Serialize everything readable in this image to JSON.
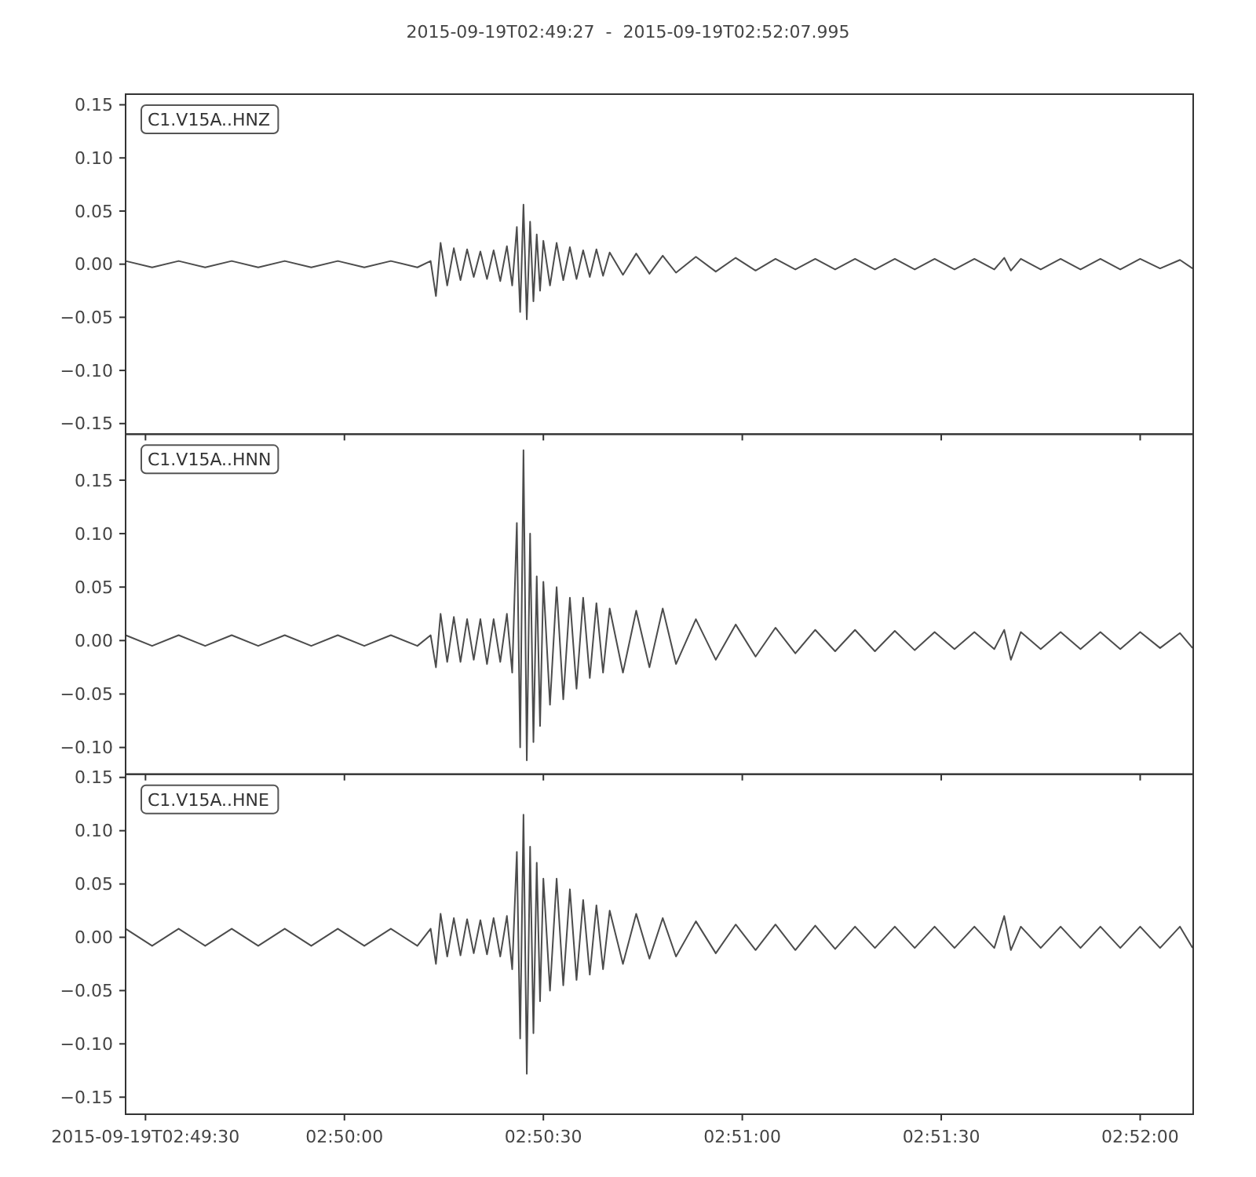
{
  "chart_data": [
    {
      "type": "line",
      "title": "2015-09-19T02:49:27  -  2015-09-19T02:52:07.995",
      "annotations": [
        "C1.V15A..HNZ"
      ],
      "tick_labels": "y",
      "xlim": [
        "2015-09-19T02:49:27",
        "2015-09-19T02:52:07.995"
      ],
      "xticks": [
        {
          "value": "2015-09-19T02:49:30",
          "label": null
        },
        {
          "value": "2015-09-19T02:50:00",
          "label": null
        },
        {
          "value": "2015-09-19T02:50:30",
          "label": null
        },
        {
          "value": "2015-09-19T02:51:00",
          "label": null
        },
        {
          "value": "2015-09-19T02:51:30",
          "label": null
        },
        {
          "value": "2015-09-19T02:52:00",
          "label": null
        }
      ],
      "ylim": [
        -0.16,
        0.16
      ],
      "yticks": [
        {
          "value": 0.15,
          "label": "0.15"
        },
        {
          "value": 0.1,
          "label": "0.10"
        },
        {
          "value": 0.05,
          "label": "0.05"
        },
        {
          "value": 0,
          "label": "0.00"
        },
        {
          "value": -0.05,
          "label": "−0.05"
        },
        {
          "value": -0.1,
          "label": "−0.10"
        },
        {
          "value": -0.15,
          "label": "−0.15"
        }
      ],
      "x": [
        "2015-09-19T02:49:27",
        "2015-09-19T02:49:31",
        "2015-09-19T02:49:35",
        "2015-09-19T02:49:39",
        "2015-09-19T02:49:43",
        "2015-09-19T02:49:47",
        "2015-09-19T02:49:51",
        "2015-09-19T02:49:55",
        "2015-09-19T02:49:59",
        "2015-09-19T02:50:03",
        "2015-09-19T02:50:07",
        "2015-09-19T02:50:11",
        "2015-09-19T02:50:13",
        "2015-09-19T02:50:13.8",
        "2015-09-19T02:50:14.5",
        "2015-09-19T02:50:15.5",
        "2015-09-19T02:50:16.5",
        "2015-09-19T02:50:17.5",
        "2015-09-19T02:50:18.5",
        "2015-09-19T02:50:19.5",
        "2015-09-19T02:50:20.5",
        "2015-09-19T02:50:21.5",
        "2015-09-19T02:50:22.5",
        "2015-09-19T02:50:23.5",
        "2015-09-19T02:50:24.5",
        "2015-09-19T02:50:25.3",
        "2015-09-19T02:50:26",
        "2015-09-19T02:50:26.5",
        "2015-09-19T02:50:27",
        "2015-09-19T02:50:27.5",
        "2015-09-19T02:50:28",
        "2015-09-19T02:50:28.5",
        "2015-09-19T02:50:29",
        "2015-09-19T02:50:29.5",
        "2015-09-19T02:50:30",
        "2015-09-19T02:50:31",
        "2015-09-19T02:50:32",
        "2015-09-19T02:50:33",
        "2015-09-19T02:50:34",
        "2015-09-19T02:50:35",
        "2015-09-19T02:50:36",
        "2015-09-19T02:50:37",
        "2015-09-19T02:50:38",
        "2015-09-19T02:50:39",
        "2015-09-19T02:50:40",
        "2015-09-19T02:50:42",
        "2015-09-19T02:50:44",
        "2015-09-19T02:50:46",
        "2015-09-19T02:50:48",
        "2015-09-19T02:50:50",
        "2015-09-19T02:50:53",
        "2015-09-19T02:50:56",
        "2015-09-19T02:50:59",
        "2015-09-19T02:51:02",
        "2015-09-19T02:51:05",
        "2015-09-19T02:51:08",
        "2015-09-19T02:51:11",
        "2015-09-19T02:51:14",
        "2015-09-19T02:51:17",
        "2015-09-19T02:51:20",
        "2015-09-19T02:51:23",
        "2015-09-19T02:51:26",
        "2015-09-19T02:51:29",
        "2015-09-19T02:51:32",
        "2015-09-19T02:51:35",
        "2015-09-19T02:51:38",
        "2015-09-19T02:51:39.5",
        "2015-09-19T02:51:40.5",
        "2015-09-19T02:51:42",
        "2015-09-19T02:51:45",
        "2015-09-19T02:51:48",
        "2015-09-19T02:51:51",
        "2015-09-19T02:51:54",
        "2015-09-19T02:51:57",
        "2015-09-19T02:52:00",
        "2015-09-19T02:52:03",
        "2015-09-19T02:52:06",
        "2015-09-19T02:52:07.9"
      ],
      "series": [
        {
          "color": "#4c4c4c",
          "values": [
            0.003,
            -0.003,
            0.003,
            -0.003,
            0.003,
            -0.003,
            0.003,
            -0.003,
            0.003,
            -0.003,
            0.003,
            -0.003,
            0.003,
            -0.03,
            0.02,
            -0.02,
            0.015,
            -0.015,
            0.014,
            -0.012,
            0.012,
            -0.014,
            0.013,
            -0.016,
            0.017,
            -0.02,
            0.035,
            -0.045,
            0.056,
            -0.052,
            0.04,
            -0.035,
            0.028,
            -0.025,
            0.022,
            -0.02,
            0.02,
            -0.015,
            0.016,
            -0.014,
            0.013,
            -0.012,
            0.014,
            -0.011,
            0.011,
            -0.01,
            0.01,
            -0.009,
            0.008,
            -0.008,
            0.007,
            -0.007,
            0.006,
            -0.006,
            0.005,
            -0.005,
            0.005,
            -0.005,
            0.005,
            -0.005,
            0.005,
            -0.005,
            0.005,
            -0.005,
            0.005,
            -0.005,
            0.006,
            -0.006,
            0.005,
            -0.005,
            0.005,
            -0.005,
            0.005,
            -0.005,
            0.005,
            -0.004,
            0.004,
            -0.004
          ]
        }
      ]
    },
    {
      "type": "line",
      "annotations": [
        "C1.V15A..HNN"
      ],
      "tick_labels": "y",
      "xlim": [
        "2015-09-19T02:49:27",
        "2015-09-19T02:52:07.995"
      ],
      "xticks": [
        {
          "value": "2015-09-19T02:49:30",
          "label": null
        },
        {
          "value": "2015-09-19T02:50:00",
          "label": null
        },
        {
          "value": "2015-09-19T02:50:30",
          "label": null
        },
        {
          "value": "2015-09-19T02:51:00",
          "label": null
        },
        {
          "value": "2015-09-19T02:51:30",
          "label": null
        },
        {
          "value": "2015-09-19T02:52:00",
          "label": null
        }
      ],
      "ylim": [
        -0.125,
        0.193
      ],
      "yticks": [
        {
          "value": 0.15,
          "label": "0.15"
        },
        {
          "value": 0.1,
          "label": "0.10"
        },
        {
          "value": 0.05,
          "label": "0.05"
        },
        {
          "value": 0,
          "label": "0.00"
        },
        {
          "value": -0.05,
          "label": "−0.05"
        },
        {
          "value": -0.1,
          "label": "−0.10"
        }
      ],
      "x": [
        "2015-09-19T02:49:27",
        "2015-09-19T02:49:31",
        "2015-09-19T02:49:35",
        "2015-09-19T02:49:39",
        "2015-09-19T02:49:43",
        "2015-09-19T02:49:47",
        "2015-09-19T02:49:51",
        "2015-09-19T02:49:55",
        "2015-09-19T02:49:59",
        "2015-09-19T02:50:03",
        "2015-09-19T02:50:07",
        "2015-09-19T02:50:11",
        "2015-09-19T02:50:13",
        "2015-09-19T02:50:13.8",
        "2015-09-19T02:50:14.5",
        "2015-09-19T02:50:15.5",
        "2015-09-19T02:50:16.5",
        "2015-09-19T02:50:17.5",
        "2015-09-19T02:50:18.5",
        "2015-09-19T02:50:19.5",
        "2015-09-19T02:50:20.5",
        "2015-09-19T02:50:21.5",
        "2015-09-19T02:50:22.5",
        "2015-09-19T02:50:23.5",
        "2015-09-19T02:50:24.5",
        "2015-09-19T02:50:25.3",
        "2015-09-19T02:50:26",
        "2015-09-19T02:50:26.5",
        "2015-09-19T02:50:27",
        "2015-09-19T02:50:27.5",
        "2015-09-19T02:50:28",
        "2015-09-19T02:50:28.5",
        "2015-09-19T02:50:29",
        "2015-09-19T02:50:29.5",
        "2015-09-19T02:50:30",
        "2015-09-19T02:50:31",
        "2015-09-19T02:50:32",
        "2015-09-19T02:50:33",
        "2015-09-19T02:50:34",
        "2015-09-19T02:50:35",
        "2015-09-19T02:50:36",
        "2015-09-19T02:50:37",
        "2015-09-19T02:50:38",
        "2015-09-19T02:50:39",
        "2015-09-19T02:50:40",
        "2015-09-19T02:50:42",
        "2015-09-19T02:50:44",
        "2015-09-19T02:50:46",
        "2015-09-19T02:50:48",
        "2015-09-19T02:50:50",
        "2015-09-19T02:50:53",
        "2015-09-19T02:50:56",
        "2015-09-19T02:50:59",
        "2015-09-19T02:51:02",
        "2015-09-19T02:51:05",
        "2015-09-19T02:51:08",
        "2015-09-19T02:51:11",
        "2015-09-19T02:51:14",
        "2015-09-19T02:51:17",
        "2015-09-19T02:51:20",
        "2015-09-19T02:51:23",
        "2015-09-19T02:51:26",
        "2015-09-19T02:51:29",
        "2015-09-19T02:51:32",
        "2015-09-19T02:51:35",
        "2015-09-19T02:51:38",
        "2015-09-19T02:51:39.5",
        "2015-09-19T02:51:40.5",
        "2015-09-19T02:51:42",
        "2015-09-19T02:51:45",
        "2015-09-19T02:51:48",
        "2015-09-19T02:51:51",
        "2015-09-19T02:51:54",
        "2015-09-19T02:51:57",
        "2015-09-19T02:52:00",
        "2015-09-19T02:52:03",
        "2015-09-19T02:52:06",
        "2015-09-19T02:52:07.9"
      ],
      "series": [
        {
          "color": "#4c4c4c",
          "values": [
            0.005,
            -0.005,
            0.005,
            -0.005,
            0.005,
            -0.005,
            0.005,
            -0.005,
            0.005,
            -0.005,
            0.005,
            -0.005,
            0.005,
            -0.025,
            0.025,
            -0.02,
            0.022,
            -0.02,
            0.02,
            -0.018,
            0.02,
            -0.022,
            0.02,
            -0.02,
            0.025,
            -0.03,
            0.11,
            -0.1,
            0.178,
            -0.112,
            0.1,
            -0.095,
            0.06,
            -0.08,
            0.055,
            -0.06,
            0.05,
            -0.055,
            0.04,
            -0.045,
            0.04,
            -0.035,
            0.035,
            -0.03,
            0.03,
            -0.03,
            0.028,
            -0.025,
            0.03,
            -0.022,
            0.02,
            -0.018,
            0.015,
            -0.015,
            0.012,
            -0.012,
            0.01,
            -0.01,
            0.01,
            -0.01,
            0.009,
            -0.009,
            0.008,
            -0.008,
            0.008,
            -0.008,
            0.01,
            -0.018,
            0.008,
            -0.008,
            0.008,
            -0.008,
            0.008,
            -0.008,
            0.008,
            -0.007,
            0.007,
            -0.007
          ]
        }
      ]
    },
    {
      "type": "line",
      "annotations": [
        "C1.V15A..HNE"
      ],
      "xlim": [
        "2015-09-19T02:49:27",
        "2015-09-19T02:52:07.995"
      ],
      "xticks": [
        {
          "value": "2015-09-19T02:49:30",
          "label": "2015-09-19T02:49:30"
        },
        {
          "value": "2015-09-19T02:50:00",
          "label": "02:50:00"
        },
        {
          "value": "2015-09-19T02:50:30",
          "label": "02:50:30"
        },
        {
          "value": "2015-09-19T02:51:00",
          "label": "02:51:00"
        },
        {
          "value": "2015-09-19T02:51:30",
          "label": "02:51:30"
        },
        {
          "value": "2015-09-19T02:52:00",
          "label": "02:52:00"
        }
      ],
      "ylim": [
        -0.166,
        0.153
      ],
      "yticks": [
        {
          "value": 0.15,
          "label": "0.15"
        },
        {
          "value": 0.1,
          "label": "0.10"
        },
        {
          "value": 0.05,
          "label": "0.05"
        },
        {
          "value": 0,
          "label": "0.00"
        },
        {
          "value": -0.05,
          "label": "−0.05"
        },
        {
          "value": -0.1,
          "label": "−0.10"
        },
        {
          "value": -0.15,
          "label": "−0.15"
        }
      ],
      "x": [
        "2015-09-19T02:49:27",
        "2015-09-19T02:49:31",
        "2015-09-19T02:49:35",
        "2015-09-19T02:49:39",
        "2015-09-19T02:49:43",
        "2015-09-19T02:49:47",
        "2015-09-19T02:49:51",
        "2015-09-19T02:49:55",
        "2015-09-19T02:49:59",
        "2015-09-19T02:50:03",
        "2015-09-19T02:50:07",
        "2015-09-19T02:50:11",
        "2015-09-19T02:50:13",
        "2015-09-19T02:50:13.8",
        "2015-09-19T02:50:14.5",
        "2015-09-19T02:50:15.5",
        "2015-09-19T02:50:16.5",
        "2015-09-19T02:50:17.5",
        "2015-09-19T02:50:18.5",
        "2015-09-19T02:50:19.5",
        "2015-09-19T02:50:20.5",
        "2015-09-19T02:50:21.5",
        "2015-09-19T02:50:22.5",
        "2015-09-19T02:50:23.5",
        "2015-09-19T02:50:24.5",
        "2015-09-19T02:50:25.3",
        "2015-09-19T02:50:26",
        "2015-09-19T02:50:26.5",
        "2015-09-19T02:50:27",
        "2015-09-19T02:50:27.5",
        "2015-09-19T02:50:28",
        "2015-09-19T02:50:28.5",
        "2015-09-19T02:50:29",
        "2015-09-19T02:50:29.5",
        "2015-09-19T02:50:30",
        "2015-09-19T02:50:31",
        "2015-09-19T02:50:32",
        "2015-09-19T02:50:33",
        "2015-09-19T02:50:34",
        "2015-09-19T02:50:35",
        "2015-09-19T02:50:36",
        "2015-09-19T02:50:37",
        "2015-09-19T02:50:38",
        "2015-09-19T02:50:39",
        "2015-09-19T02:50:40",
        "2015-09-19T02:50:42",
        "2015-09-19T02:50:44",
        "2015-09-19T02:50:46",
        "2015-09-19T02:50:48",
        "2015-09-19T02:50:50",
        "2015-09-19T02:50:53",
        "2015-09-19T02:50:56",
        "2015-09-19T02:50:59",
        "2015-09-19T02:51:02",
        "2015-09-19T02:51:05",
        "2015-09-19T02:51:08",
        "2015-09-19T02:51:11",
        "2015-09-19T02:51:14",
        "2015-09-19T02:51:17",
        "2015-09-19T02:51:20",
        "2015-09-19T02:51:23",
        "2015-09-19T02:51:26",
        "2015-09-19T02:51:29",
        "2015-09-19T02:51:32",
        "2015-09-19T02:51:35",
        "2015-09-19T02:51:38",
        "2015-09-19T02:51:39.5",
        "2015-09-19T02:51:40.5",
        "2015-09-19T02:51:42",
        "2015-09-19T02:51:45",
        "2015-09-19T02:51:48",
        "2015-09-19T02:51:51",
        "2015-09-19T02:51:54",
        "2015-09-19T02:51:57",
        "2015-09-19T02:52:00",
        "2015-09-19T02:52:03",
        "2015-09-19T02:52:06",
        "2015-09-19T02:52:07.9"
      ],
      "series": [
        {
          "color": "#4c4c4c",
          "values": [
            0.008,
            -0.008,
            0.008,
            -0.008,
            0.008,
            -0.008,
            0.008,
            -0.008,
            0.008,
            -0.008,
            0.008,
            -0.008,
            0.008,
            -0.025,
            0.022,
            -0.018,
            0.018,
            -0.017,
            0.017,
            -0.015,
            0.016,
            -0.016,
            0.018,
            -0.018,
            0.02,
            -0.03,
            0.08,
            -0.095,
            0.115,
            -0.128,
            0.085,
            -0.09,
            0.07,
            -0.06,
            0.055,
            -0.05,
            0.055,
            -0.045,
            0.045,
            -0.04,
            0.035,
            -0.035,
            0.03,
            -0.03,
            0.025,
            -0.025,
            0.022,
            -0.02,
            0.018,
            -0.018,
            0.015,
            -0.015,
            0.012,
            -0.012,
            0.012,
            -0.012,
            0.011,
            -0.011,
            0.01,
            -0.01,
            0.01,
            -0.01,
            0.01,
            -0.01,
            0.01,
            -0.01,
            0.02,
            -0.012,
            0.01,
            -0.01,
            0.01,
            -0.01,
            0.01,
            -0.01,
            0.01,
            -0.01,
            0.01,
            -0.01
          ]
        }
      ]
    }
  ]
}
